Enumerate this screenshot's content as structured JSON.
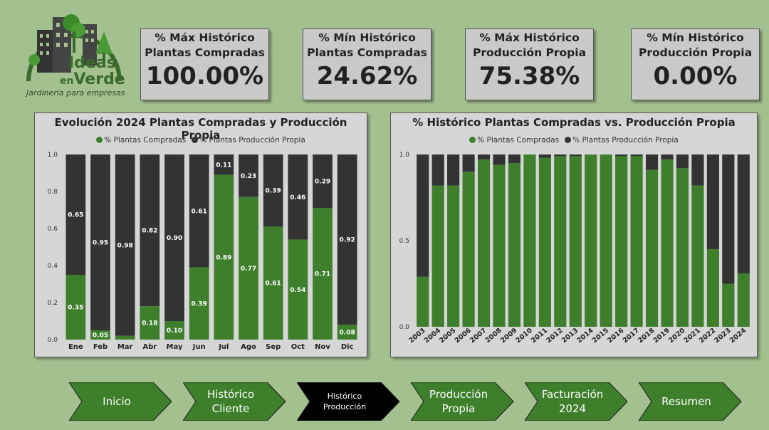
{
  "logo": {
    "name_line1": "Ideas",
    "name_prefix": "en",
    "name_line2": "Verde",
    "tagline": "Jardinería para empresas"
  },
  "kpis": [
    {
      "title": "% Máx Histórico Plantas Compradas",
      "value": "100.00%"
    },
    {
      "title": "% Mín Histórico Plantas Compradas",
      "value": "24.62%"
    },
    {
      "title": "% Máx Histórico Producción Propia",
      "value": "75.38%"
    },
    {
      "title": "% Mín Histórico Producción Propia",
      "value": "0.00%"
    }
  ],
  "colors": {
    "green": "#3d7f2b",
    "dark": "#333333",
    "background": "#a3c08f"
  },
  "chart_data": [
    {
      "type": "bar",
      "stacked": true,
      "title": "Evolución 2024 Plantas Compradas y Producción Propia",
      "legend": [
        "% Plantas Compradas",
        "% Plantas Producción Propia"
      ],
      "categories": [
        "Ene",
        "Feb",
        "Mar",
        "Abr",
        "May",
        "Jun",
        "Jul",
        "Ago",
        "Sep",
        "Oct",
        "Nov",
        "Dic"
      ],
      "series": [
        {
          "name": "% Plantas Compradas",
          "values": [
            0.35,
            0.05,
            0.02,
            0.18,
            0.1,
            0.39,
            0.89,
            0.77,
            0.61,
            0.54,
            0.71,
            0.08
          ],
          "labels": [
            "0.35",
            "0.05",
            "",
            "0.18",
            "0.10",
            "0.39",
            "0.89",
            "0.77",
            "0.61",
            "0.54",
            "0.71",
            "0.08"
          ]
        },
        {
          "name": "% Plantas Producción Propia",
          "values": [
            0.65,
            0.95,
            0.98,
            0.82,
            0.9,
            0.61,
            0.11,
            0.23,
            0.39,
            0.46,
            0.29,
            0.92
          ],
          "labels": [
            "0.65",
            "0.95",
            "0.98",
            "0.82",
            "0.90",
            "0.61",
            "0.11",
            "0.23",
            "0.39",
            "0.46",
            "0.29",
            "0.92"
          ]
        }
      ],
      "yticks": [
        "0.0",
        "0.2",
        "0.4",
        "0.6",
        "0.8",
        "1.0"
      ],
      "ylim": [
        0,
        1
      ]
    },
    {
      "type": "bar",
      "stacked": true,
      "title": "% Histórico Plantas Compradas vs. Producción Propia",
      "legend": [
        "% Plantas Compradas",
        "% Plantas Producción Propia"
      ],
      "categories": [
        "2003",
        "2004",
        "2005",
        "2006",
        "2007",
        "2008",
        "2009",
        "2010",
        "2011",
        "2012",
        "2013",
        "2014",
        "2015",
        "2016",
        "2017",
        "2018",
        "2019",
        "2020",
        "2021",
        "2022",
        "2023",
        "2024"
      ],
      "series": [
        {
          "name": "% Plantas Compradas",
          "values": [
            0.29,
            0.82,
            0.82,
            0.9,
            0.97,
            0.94,
            0.95,
            1.0,
            0.98,
            0.99,
            0.99,
            1.0,
            1.0,
            0.99,
            0.99,
            0.91,
            0.97,
            0.92,
            0.82,
            0.45,
            0.25,
            0.31
          ]
        },
        {
          "name": "% Plantas Producción Propia",
          "values": [
            0.71,
            0.18,
            0.18,
            0.1,
            0.03,
            0.06,
            0.05,
            0.0,
            0.02,
            0.01,
            0.01,
            0.0,
            0.0,
            0.01,
            0.01,
            0.09,
            0.03,
            0.08,
            0.18,
            0.55,
            0.75,
            0.69
          ]
        }
      ],
      "yticks": [
        "0.0",
        "0.5",
        "1.0"
      ],
      "ylim": [
        0,
        1
      ]
    }
  ],
  "nav": [
    {
      "label": "Inicio",
      "active": false
    },
    {
      "label": "Histórico\nCliente",
      "active": false
    },
    {
      "label": "Histórico\nProducción",
      "active": true
    },
    {
      "label": "Producción\nPropia",
      "active": false
    },
    {
      "label": "Facturación\n2024",
      "active": false
    },
    {
      "label": "Resumen",
      "active": false
    }
  ]
}
